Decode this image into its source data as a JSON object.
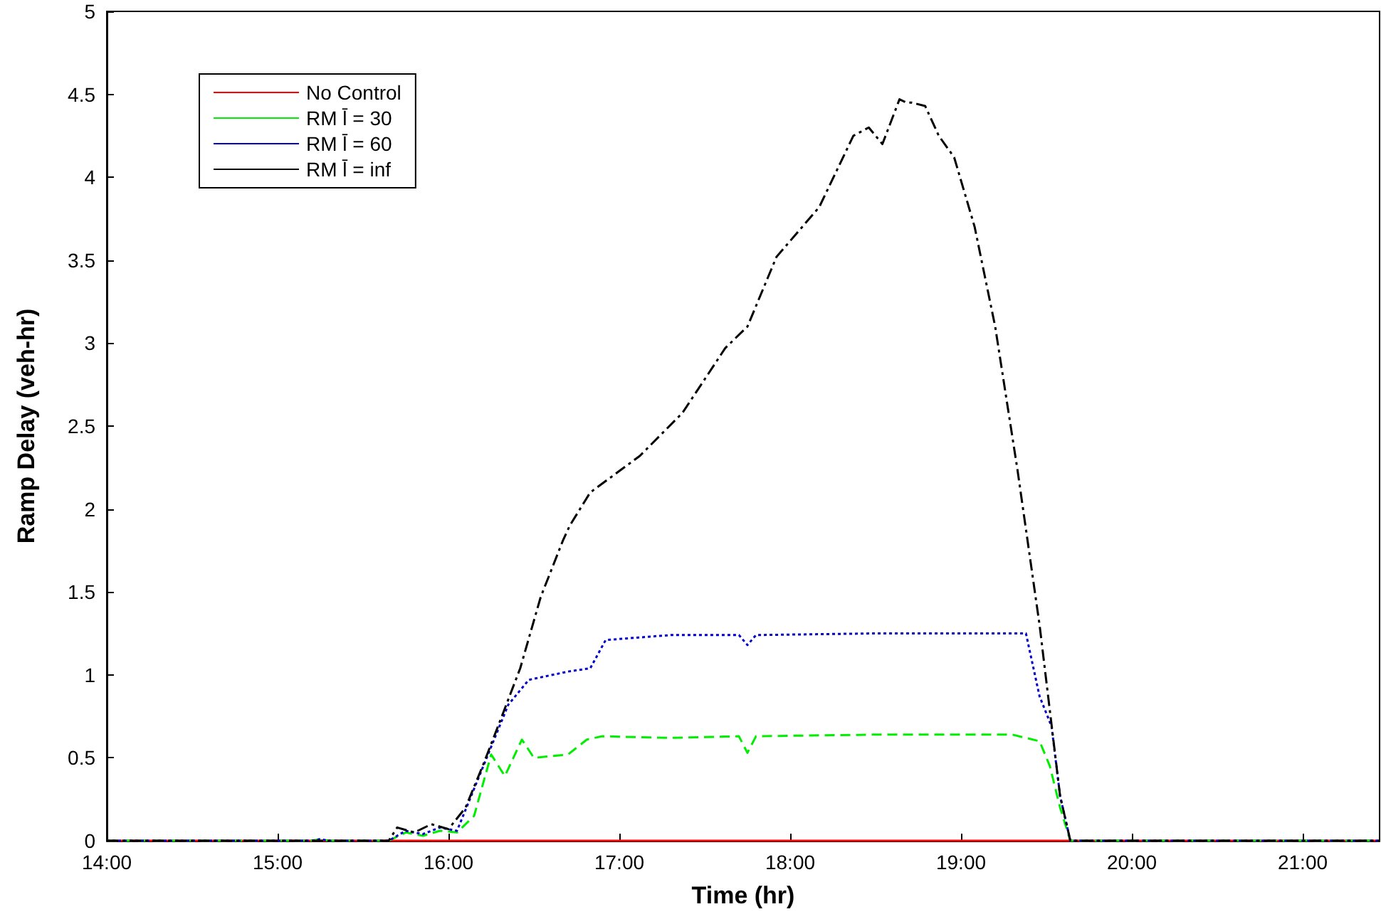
{
  "chart_data": {
    "type": "line",
    "xlabel": "Time (hr)",
    "ylabel": "Ramp Delay (veh-hr)",
    "xlim": [
      14,
      21.45
    ],
    "ylim": [
      0,
      5
    ],
    "xticks": [
      {
        "value": 14,
        "label": "14:00"
      },
      {
        "value": 15,
        "label": "15:00"
      },
      {
        "value": 16,
        "label": "16:00"
      },
      {
        "value": 17,
        "label": "17:00"
      },
      {
        "value": 18,
        "label": "18:00"
      },
      {
        "value": 19,
        "label": "19:00"
      },
      {
        "value": 20,
        "label": "20:00"
      },
      {
        "value": 21,
        "label": "21:00"
      }
    ],
    "yticks": [
      0,
      0.5,
      1,
      1.5,
      2,
      2.5,
      3,
      3.5,
      4,
      4.5,
      5
    ],
    "grid": false,
    "legend": "top left",
    "marker": "none",
    "series": [
      {
        "name": "No Control",
        "color": "#ff0000",
        "line_style": "solid",
        "x": [
          14,
          21.45
        ],
        "values": [
          0,
          0
        ]
      },
      {
        "name": "RM l̄ = 30",
        "color": "#00ee00",
        "line_style": "dashed",
        "x": [
          14,
          15.2,
          15.25,
          15.3,
          15.65,
          15.75,
          15.85,
          15.95,
          16.05,
          16.15,
          16.25,
          16.33,
          16.43,
          16.5,
          16.7,
          16.81,
          16.9,
          17.3,
          17.7,
          17.75,
          17.8,
          18.5,
          19.3,
          19.46,
          19.52,
          19.58,
          19.64,
          21.45
        ],
        "values": [
          0,
          0,
          0.01,
          0,
          0,
          0.05,
          0.03,
          0.06,
          0.05,
          0.15,
          0.52,
          0.39,
          0.61,
          0.5,
          0.52,
          0.61,
          0.63,
          0.62,
          0.63,
          0.53,
          0.63,
          0.64,
          0.64,
          0.6,
          0.45,
          0.2,
          0,
          0
        ]
      },
      {
        "name": "RM l̄ = 60",
        "color": "#0000cc",
        "line_style": "dotted",
        "x": [
          14,
          15.2,
          15.25,
          15.3,
          15.65,
          15.75,
          15.85,
          15.95,
          16.05,
          16.2,
          16.35,
          16.47,
          16.7,
          16.83,
          16.92,
          17.3,
          17.7,
          17.75,
          17.8,
          18.5,
          19.38,
          19.46,
          19.53,
          19.58,
          19.64,
          21.45
        ],
        "values": [
          0,
          0,
          0.01,
          0,
          0,
          0.06,
          0.04,
          0.08,
          0.06,
          0.44,
          0.82,
          0.97,
          1.02,
          1.04,
          1.21,
          1.24,
          1.24,
          1.18,
          1.24,
          1.25,
          1.25,
          0.87,
          0.69,
          0.27,
          0,
          0
        ]
      },
      {
        "name": "RM l̄ = inf",
        "color": "#000000",
        "line_style": "dashdot",
        "x": [
          14,
          15.65,
          15.7,
          15.8,
          15.9,
          16,
          16.1,
          16.2,
          16.29,
          16.42,
          16.54,
          16.67,
          16.71,
          16.83,
          17.12,
          17.37,
          17.62,
          17.75,
          17.92,
          18.17,
          18.37,
          18.46,
          18.54,
          18.64,
          18.68,
          18.71,
          18.79,
          18.87,
          18.96,
          19.08,
          19.2,
          19.33,
          19.46,
          19.58,
          19.64,
          21.45
        ],
        "values": [
          0,
          0,
          0.08,
          0.05,
          0.1,
          0.07,
          0.2,
          0.45,
          0.69,
          1.04,
          1.47,
          1.81,
          1.9,
          2.1,
          2.32,
          2.58,
          2.97,
          3.1,
          3.52,
          3.82,
          4.25,
          4.3,
          4.2,
          4.47,
          4.45,
          4.45,
          4.43,
          4.25,
          4.12,
          3.7,
          3.1,
          2.24,
          1.3,
          0.27,
          0,
          0
        ]
      }
    ]
  }
}
